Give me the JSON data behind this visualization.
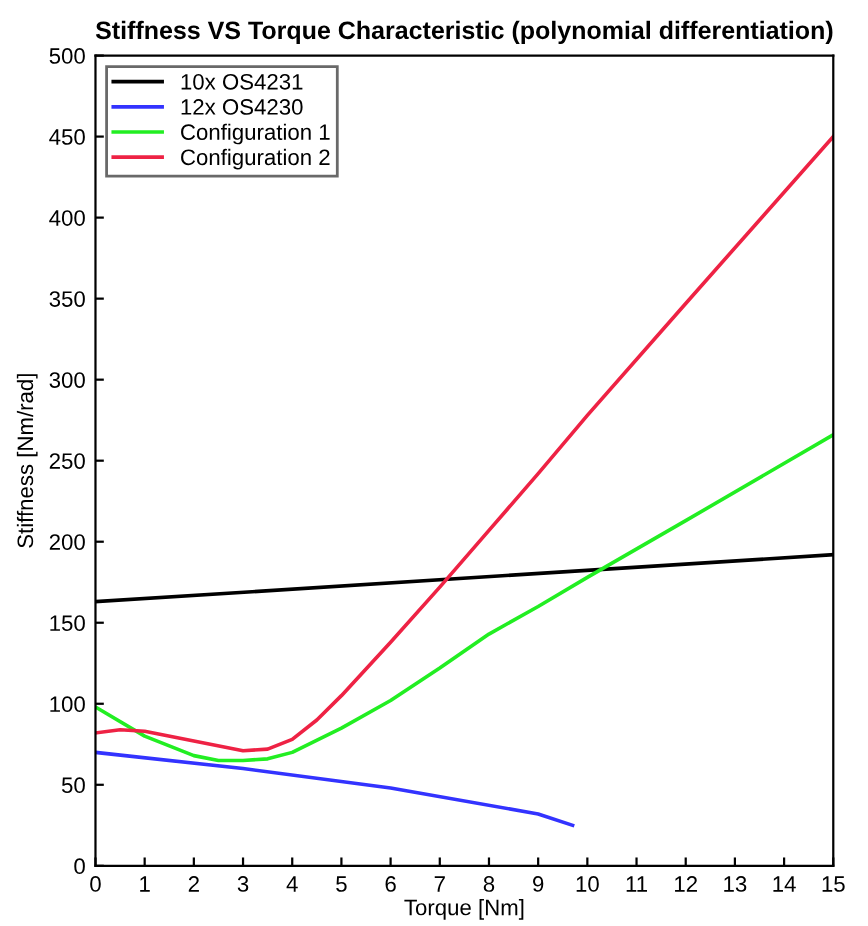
{
  "chart_data": {
    "type": "line",
    "title": "Stiffness VS Torque Characteristic (polynomial differentiation)",
    "xlabel": "Torque [Nm]",
    "ylabel": "Stiffness [Nm/rad]",
    "xlim": [
      0,
      15
    ],
    "xticks": [
      0,
      1,
      2,
      3,
      4,
      5,
      6,
      7,
      8,
      9,
      10,
      11,
      12,
      13,
      14,
      15
    ],
    "ylim": [
      0,
      500
    ],
    "yticks": [
      0,
      50,
      100,
      150,
      200,
      250,
      300,
      350,
      400,
      450,
      500
    ],
    "grid": false,
    "legend": "top left",
    "marker": "none",
    "line_style": "solid",
    "series": [
      {
        "name": "10x OS4231",
        "color": "#000000",
        "x": [
          0,
          15
        ],
        "values": [
          163,
          192
        ]
      },
      {
        "name": "12x OS4230",
        "color": "#3333ff",
        "x": [
          0,
          3,
          6,
          9,
          9.7
        ],
        "values": [
          70,
          60,
          48,
          32,
          25
        ]
      },
      {
        "name": "Configuration 1",
        "color": "#22ee22",
        "x": [
          0,
          1,
          2,
          2.5,
          3,
          3.5,
          4,
          5,
          6,
          7,
          8,
          9,
          10,
          12,
          15
        ],
        "values": [
          98,
          80,
          68,
          65,
          65,
          66,
          70,
          85,
          102,
          122,
          143,
          160,
          178,
          213,
          266
        ]
      },
      {
        "name": "Configuration 2",
        "color": "#ee2244",
        "x": [
          0,
          0.5,
          1,
          2,
          3,
          3.5,
          4,
          4.5,
          5,
          6,
          7,
          8,
          9,
          10,
          12,
          15
        ],
        "values": [
          82,
          84,
          83,
          77,
          71,
          72,
          78,
          90,
          105,
          138,
          172,
          207,
          242,
          278,
          347,
          450
        ]
      }
    ]
  }
}
